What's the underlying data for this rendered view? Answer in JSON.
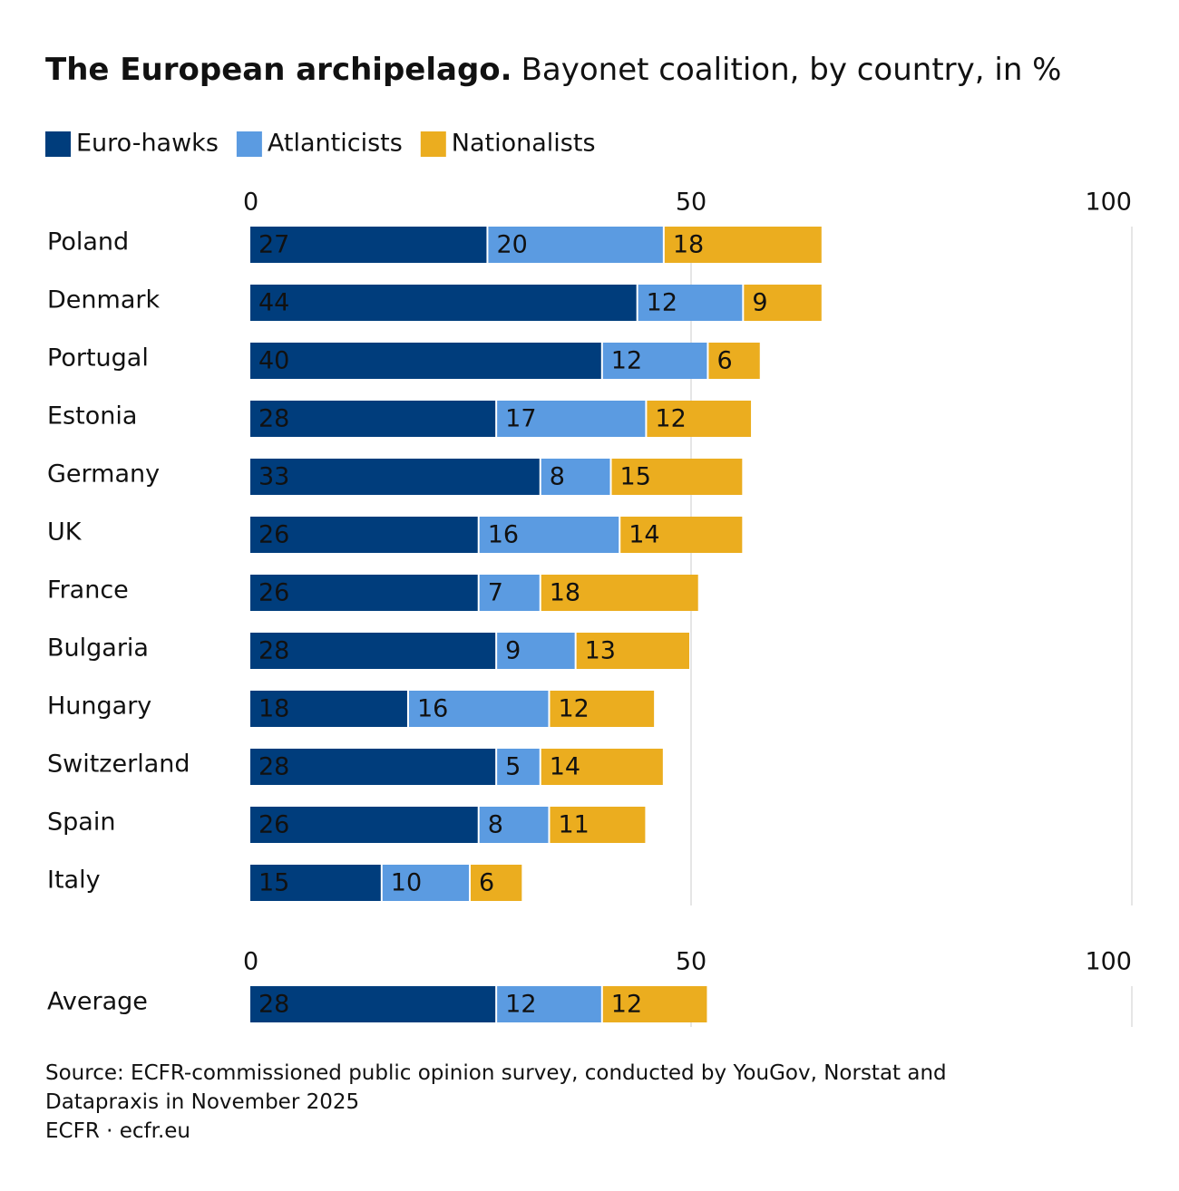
{
  "title_bold": "The European archipelago.",
  "title": "Bayonet coalition, by country, in %",
  "chart_data": [
    {
      "type": "bar",
      "orientation": "horizontal",
      "stacked": true,
      "categories": [
        "Poland",
        "Denmark",
        "Portugal",
        "Estonia",
        "Germany",
        "UK",
        "France",
        "Bulgaria",
        "Hungary",
        "Switzerland",
        "Spain",
        "Italy"
      ],
      "series": [
        {
          "name": "Euro-hawks",
          "color": "#003d7c",
          "values": [
            27,
            44,
            40,
            28,
            33,
            26,
            26,
            28,
            18,
            28,
            26,
            15
          ]
        },
        {
          "name": "Atlanticists",
          "color": "#5b9be1",
          "values": [
            20,
            12,
            12,
            17,
            8,
            16,
            7,
            9,
            16,
            5,
            8,
            10
          ]
        },
        {
          "name": "Nationalists",
          "color": "#ebad1f",
          "values": [
            18,
            9,
            6,
            12,
            15,
            14,
            18,
            13,
            12,
            14,
            11,
            6
          ]
        }
      ],
      "xlim": [
        0,
        100
      ],
      "xticks": [
        0,
        50,
        100
      ],
      "grid": true
    },
    {
      "type": "bar",
      "orientation": "horizontal",
      "stacked": true,
      "categories": [
        "Average"
      ],
      "series": [
        {
          "color": "#003d7c",
          "values": [
            28
          ]
        },
        {
          "color": "#5b9be1",
          "values": [
            12
          ]
        },
        {
          "color": "#ebad1f",
          "values": [
            12
          ]
        }
      ],
      "xlim": [
        0,
        100
      ],
      "xticks": [
        0,
        50,
        100
      ],
      "grid": true
    }
  ],
  "source": "Source: ECFR-commissioned public opinion survey, conducted by YouGov, Norstat and Datapraxis in November 2025",
  "credit": "ECFR · ecfr.eu"
}
